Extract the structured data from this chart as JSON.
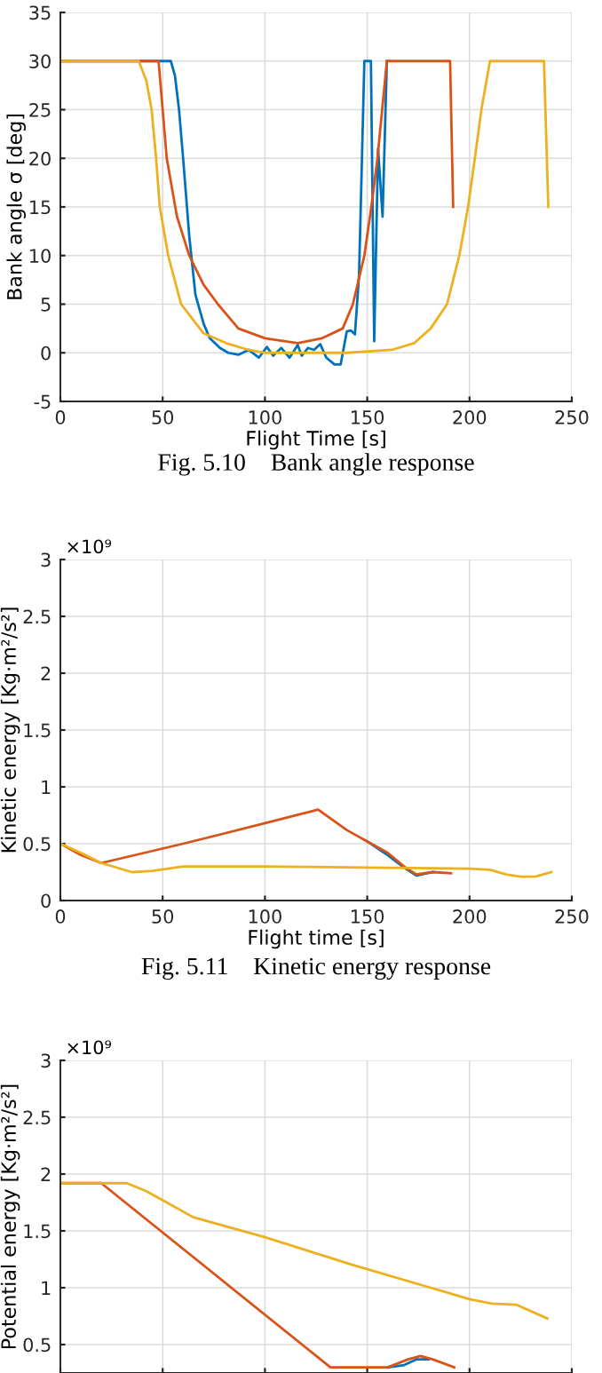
{
  "chart_data": [
    {
      "type": "line",
      "xlabel": "Flight Time [s]",
      "ylabel": "Bank angle σ [deg]",
      "annotations": [
        "Fig. 5.10    Bank angle response"
      ],
      "xlim": [
        0,
        250
      ],
      "xticks": [
        0,
        50,
        100,
        150,
        200,
        250
      ],
      "ylim": [
        -5,
        35
      ],
      "yticks": [
        -5,
        0,
        5,
        10,
        15,
        20,
        25,
        30,
        35
      ],
      "grid": true,
      "legend": false,
      "series": [
        {
          "color": "#0072bd",
          "x": [
            0,
            54,
            56,
            58,
            60,
            63,
            66,
            70,
            73,
            78,
            82,
            87,
            92,
            97,
            101,
            104,
            108,
            112,
            116,
            118,
            121,
            124,
            127,
            130,
            134,
            137,
            140,
            142,
            144,
            146,
            148.6,
            151.8,
            153.4,
            155.3,
            157.5,
            159.6
          ],
          "values": [
            30,
            30,
            28.5,
            25,
            20,
            12,
            6,
            3,
            1.5,
            0.5,
            0,
            -0.2,
            0.3,
            -0.5,
            0.6,
            -0.3,
            0.5,
            -0.5,
            0.8,
            -0.3,
            0.5,
            0.3,
            0.9,
            -0.5,
            -1.2,
            -1.2,
            2.2,
            2.3,
            1.9,
            8,
            30,
            30,
            1.2,
            21,
            14,
            30
          ]
        },
        {
          "color": "#d95319",
          "x": [
            0,
            48,
            52,
            57,
            63,
            70,
            77,
            87,
            100,
            116,
            128,
            138,
            143,
            148.6,
            152,
            155,
            159.6,
            190.5,
            192
          ],
          "values": [
            30,
            30,
            20,
            14,
            10,
            7,
            5,
            2.5,
            1.5,
            1,
            1.5,
            2.5,
            5,
            10,
            15,
            20,
            30,
            30,
            15
          ]
        },
        {
          "color": "#edb120",
          "x": [
            0,
            38.3,
            42,
            44.6,
            46.8,
            48.6,
            52.7,
            59,
            70,
            81,
            92,
            100,
            140,
            162,
            173,
            181,
            189,
            195,
            199.3,
            202.6,
            205.8,
            210,
            236.4,
            238.5
          ],
          "values": [
            30,
            30,
            28,
            25,
            20,
            15,
            10,
            5,
            2,
            1,
            0.3,
            0,
            0,
            0.3,
            1,
            2.5,
            5,
            10,
            15,
            20,
            25,
            30,
            30,
            15
          ]
        }
      ]
    },
    {
      "type": "line",
      "xlabel": "Flight time [s]",
      "ylabel": "Kinetic energy [Kg·m²/s²]",
      "annotations": [
        "×10⁹",
        "Fig. 5.11    Kinetic energy response"
      ],
      "xlim": [
        0,
        250
      ],
      "xticks": [
        0,
        50,
        100,
        150,
        200,
        250
      ],
      "ylim": [
        0,
        3
      ],
      "yticks": [
        0,
        0.5,
        1,
        1.5,
        2,
        2.5,
        3
      ],
      "grid": true,
      "legend": false,
      "series": [
        {
          "color": "#0072bd",
          "x": [
            150,
            160,
            168,
            174,
            182
          ],
          "values": [
            0.52,
            0.4,
            0.29,
            0.22,
            0.25
          ]
        },
        {
          "color": "#d95319",
          "x": [
            0,
            10,
            20,
            60,
            100,
            126,
            140,
            150,
            160,
            168,
            174,
            182,
            191
          ],
          "values": [
            0.5,
            0.4,
            0.33,
            0.5,
            0.68,
            0.8,
            0.62,
            0.52,
            0.42,
            0.3,
            0.23,
            0.25,
            0.24
          ]
        },
        {
          "color": "#edb120",
          "x": [
            0,
            10,
            20,
            35,
            45,
            60,
            100,
            150,
            200,
            210,
            218,
            225,
            232,
            240
          ],
          "values": [
            0.5,
            0.42,
            0.33,
            0.25,
            0.26,
            0.3,
            0.3,
            0.29,
            0.28,
            0.27,
            0.23,
            0.21,
            0.21,
            0.25
          ]
        }
      ]
    },
    {
      "type": "line",
      "ylabel": "Potential energy [Kg·m²/s²]",
      "annotations": [
        "×10⁹"
      ],
      "xlim": [
        0,
        250
      ],
      "xticks": [
        0,
        50,
        100,
        150,
        200,
        250
      ],
      "ylim": [
        0.25,
        3
      ],
      "yticks": [
        0.5,
        1,
        1.5,
        2,
        2.5,
        3
      ],
      "tick_labels": "y",
      "grid": true,
      "legend": false,
      "series": [
        {
          "color": "#0072bd",
          "x": [
            160,
            168,
            174,
            180
          ],
          "values": [
            0.3,
            0.32,
            0.37,
            0.37
          ]
        },
        {
          "color": "#d95319",
          "x": [
            0,
            20,
            132,
            160,
            170,
            176,
            182,
            192.5
          ],
          "values": [
            1.92,
            1.92,
            0.3,
            0.3,
            0.37,
            0.4,
            0.37,
            0.3
          ]
        },
        {
          "color": "#edb120",
          "x": [
            0,
            32.5,
            42,
            52,
            65,
            99,
            143,
            181,
            200,
            211,
            223,
            238
          ],
          "values": [
            1.92,
            1.92,
            1.85,
            1.75,
            1.62,
            1.45,
            1.2,
            1.0,
            0.9,
            0.86,
            0.85,
            0.73
          ]
        }
      ]
    }
  ]
}
